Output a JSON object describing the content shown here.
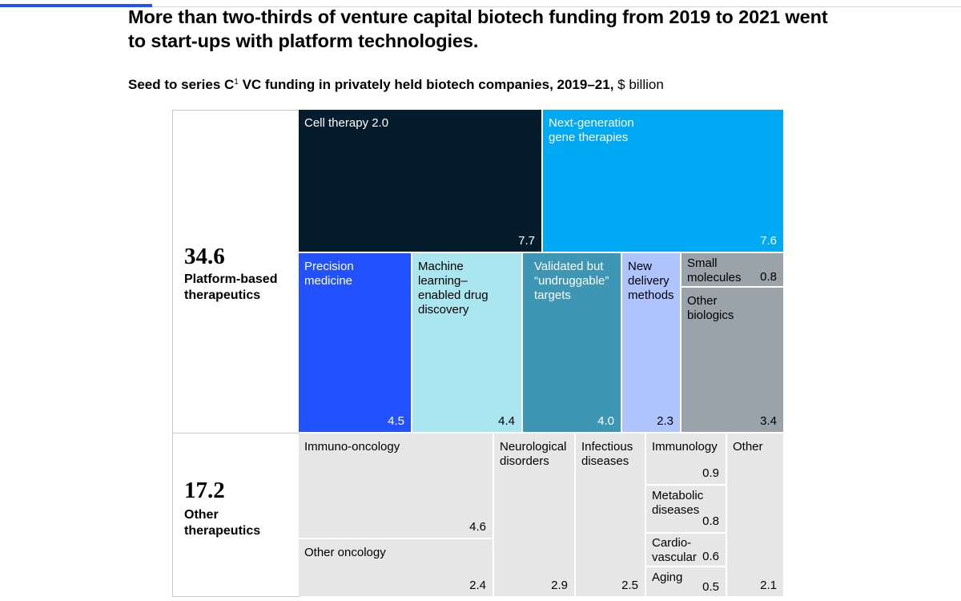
{
  "chart_data": {
    "type": "treemap",
    "title": "More than two-thirds of venture capital biotech funding from 2019 to 2021 went to start-ups with platform technologies.",
    "subtitle": {
      "bold_part": "Seed to series C",
      "footnote_marker": "1",
      "bold_part_2": " VC funding in privately held biotech companies, 2019–21,",
      "unit": " $ billion"
    },
    "groups": [
      {
        "total": "34.6",
        "label": "Platform-based therapeutics",
        "items": [
          {
            "label": "Cell therapy 2.0",
            "value": 7.7,
            "value_text": "7.7",
            "color": "#051c2c",
            "text_color": "#ffffff"
          },
          {
            "label": "Next-generation\ngene therapies",
            "value": 7.6,
            "value_text": "7.6",
            "color": "#00a9f4",
            "text_color": "#ffffff"
          },
          {
            "label": "Precision\nmedicine",
            "value": 4.5,
            "value_text": "4.5",
            "color": "#2251ff",
            "text_color": "#ffffff"
          },
          {
            "label": "Machine\nlearning–\nenabled drug\ndiscovery",
            "value": 4.4,
            "value_text": "4.4",
            "color": "#aae6f0",
            "text_color": "#000000"
          },
          {
            "label": "Validated but\n“undruggable”\ntargets",
            "value": 4.0,
            "value_text": "4.0",
            "color": "#3c96b4",
            "text_color": "#ffffff"
          },
          {
            "label": "New\ndelivery\nmethods",
            "value": 2.3,
            "value_text": "2.3",
            "color": "#afc3ff",
            "text_color": "#000000"
          },
          {
            "label": "Small\nmolecules",
            "value": 0.8,
            "value_text": "0.8",
            "color": "#9aa3a9",
            "text_color": "#000000"
          },
          {
            "label": "Other\nbiologics",
            "value": 3.4,
            "value_text": "3.4",
            "color": "#9aa3a9",
            "text_color": "#000000"
          }
        ]
      },
      {
        "total": "17.2",
        "label": "Other therapeutics",
        "items": [
          {
            "label": "Immuno-oncology",
            "value": 4.6,
            "value_text": "4.6",
            "color": "#e6e6e6",
            "text_color": "#000000"
          },
          {
            "label": "Other oncology",
            "value": 2.4,
            "value_text": "2.4",
            "color": "#e6e6e6",
            "text_color": "#000000"
          },
          {
            "label": "Neurological\ndisorders",
            "value": 2.9,
            "value_text": "2.9",
            "color": "#e6e6e6",
            "text_color": "#000000"
          },
          {
            "label": "Infectious\ndiseases",
            "value": 2.5,
            "value_text": "2.5",
            "color": "#e6e6e6",
            "text_color": "#000000"
          },
          {
            "label": "Immunology",
            "value": 0.9,
            "value_text": "0.9",
            "color": "#e6e6e6",
            "text_color": "#000000"
          },
          {
            "label": "Metabolic\ndiseases",
            "value": 0.8,
            "value_text": "0.8",
            "color": "#e6e6e6",
            "text_color": "#000000"
          },
          {
            "label": "Cardio-\nvascular",
            "value": 0.6,
            "value_text": "0.6",
            "color": "#e6e6e6",
            "text_color": "#000000"
          },
          {
            "label": "Aging",
            "value": 0.5,
            "value_text": "0.5",
            "color": "#e6e6e6",
            "text_color": "#000000"
          },
          {
            "label": "Other",
            "value": 2.1,
            "value_text": "2.1",
            "color": "#e6e6e6",
            "text_color": "#000000"
          }
        ]
      }
    ]
  }
}
